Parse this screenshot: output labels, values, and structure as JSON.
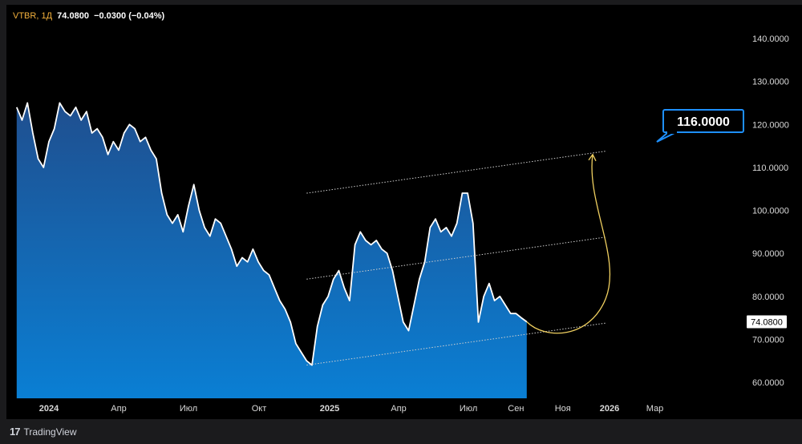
{
  "legend": {
    "symbol": "VTBR",
    "interval": "1Д",
    "last": "74.0800",
    "change": "−0.0300",
    "change_pct": "(−0.04%)"
  },
  "brand": {
    "logo": "17",
    "name": "TradingView"
  },
  "colors": {
    "area_top": "#1f4f8f",
    "area_bottom": "#0a7fd4",
    "line": "#ffffff",
    "forecast": "#f0d060",
    "callout": "#1e90ff",
    "guide": "#cfcfcf"
  },
  "chart_data": {
    "type": "area",
    "title": "",
    "xlabel": "",
    "ylabel": "",
    "ylim": [
      56,
      145
    ],
    "y_ticks": [
      "140.0000",
      "130.0000",
      "120.0000",
      "110.0000",
      "100.0000",
      "90.0000",
      "80.0000",
      "70.0000",
      "60.0000"
    ],
    "y_tick_values": [
      140,
      130,
      120,
      110,
      100,
      90,
      80,
      70,
      60
    ],
    "x_ticks": [
      {
        "label": "2024",
        "date": "2024-01-01",
        "bold": true
      },
      {
        "label": "Апр",
        "date": "2024-04-01",
        "bold": false
      },
      {
        "label": "Июл",
        "date": "2024-07-01",
        "bold": false
      },
      {
        "label": "Окт",
        "date": "2024-10-01",
        "bold": false
      },
      {
        "label": "2025",
        "date": "2025-01-01",
        "bold": true
      },
      {
        "label": "Апр",
        "date": "2025-04-01",
        "bold": false
      },
      {
        "label": "Июл",
        "date": "2025-07-01",
        "bold": false
      },
      {
        "label": "Сен",
        "date": "2025-09-01",
        "bold": false
      },
      {
        "label": "Ноя",
        "date": "2025-11-01",
        "bold": false
      },
      {
        "label": "2026",
        "date": "2026-01-01",
        "bold": true
      },
      {
        "label": "Мар",
        "date": "2026-03-01",
        "bold": false
      }
    ],
    "series": [
      {
        "points": [
          [
            "2023-11-20",
            124
          ],
          [
            "2023-11-27",
            121
          ],
          [
            "2023-12-04",
            125
          ],
          [
            "2023-12-11",
            118
          ],
          [
            "2023-12-18",
            112
          ],
          [
            "2023-12-25",
            110
          ],
          [
            "2024-01-01",
            116
          ],
          [
            "2024-01-08",
            119
          ],
          [
            "2024-01-15",
            125
          ],
          [
            "2024-01-22",
            123
          ],
          [
            "2024-01-29",
            122
          ],
          [
            "2024-02-05",
            124
          ],
          [
            "2024-02-12",
            121
          ],
          [
            "2024-02-19",
            123
          ],
          [
            "2024-02-26",
            118
          ],
          [
            "2024-03-04",
            119
          ],
          [
            "2024-03-11",
            117
          ],
          [
            "2024-03-18",
            113
          ],
          [
            "2024-03-25",
            116
          ],
          [
            "2024-04-01",
            114
          ],
          [
            "2024-04-08",
            118
          ],
          [
            "2024-04-15",
            120
          ],
          [
            "2024-04-22",
            119
          ],
          [
            "2024-04-29",
            116
          ],
          [
            "2024-05-06",
            117
          ],
          [
            "2024-05-13",
            114
          ],
          [
            "2024-05-20",
            112
          ],
          [
            "2024-05-27",
            104
          ],
          [
            "2024-06-03",
            99
          ],
          [
            "2024-06-10",
            97
          ],
          [
            "2024-06-17",
            99
          ],
          [
            "2024-06-24",
            95
          ],
          [
            "2024-07-01",
            101
          ],
          [
            "2024-07-08",
            106
          ],
          [
            "2024-07-15",
            100
          ],
          [
            "2024-07-22",
            96
          ],
          [
            "2024-07-29",
            94
          ],
          [
            "2024-08-05",
            98
          ],
          [
            "2024-08-12",
            97
          ],
          [
            "2024-08-19",
            94
          ],
          [
            "2024-08-26",
            91
          ],
          [
            "2024-09-02",
            87
          ],
          [
            "2024-09-09",
            89
          ],
          [
            "2024-09-16",
            88
          ],
          [
            "2024-09-23",
            91
          ],
          [
            "2024-09-30",
            88
          ],
          [
            "2024-10-07",
            86
          ],
          [
            "2024-10-14",
            85
          ],
          [
            "2024-10-21",
            82
          ],
          [
            "2024-10-28",
            79
          ],
          [
            "2024-11-04",
            77
          ],
          [
            "2024-11-11",
            74
          ],
          [
            "2024-11-18",
            69
          ],
          [
            "2024-11-25",
            67
          ],
          [
            "2024-12-02",
            65
          ],
          [
            "2024-12-09",
            64
          ],
          [
            "2024-12-16",
            73
          ],
          [
            "2024-12-23",
            78
          ],
          [
            "2024-12-30",
            80
          ],
          [
            "2025-01-06",
            84
          ],
          [
            "2025-01-13",
            86
          ],
          [
            "2025-01-20",
            82
          ],
          [
            "2025-01-27",
            79
          ],
          [
            "2025-02-03",
            92
          ],
          [
            "2025-02-10",
            95
          ],
          [
            "2025-02-17",
            93
          ],
          [
            "2025-02-24",
            92
          ],
          [
            "2025-03-03",
            93
          ],
          [
            "2025-03-10",
            91
          ],
          [
            "2025-03-17",
            90
          ],
          [
            "2025-03-24",
            86
          ],
          [
            "2025-03-31",
            80
          ],
          [
            "2025-04-07",
            74
          ],
          [
            "2025-04-14",
            72
          ],
          [
            "2025-04-21",
            78
          ],
          [
            "2025-04-28",
            84
          ],
          [
            "2025-05-05",
            88
          ],
          [
            "2025-05-12",
            96
          ],
          [
            "2025-05-19",
            98
          ],
          [
            "2025-05-26",
            95
          ],
          [
            "2025-06-02",
            96
          ],
          [
            "2025-06-09",
            94
          ],
          [
            "2025-06-16",
            97
          ],
          [
            "2025-06-23",
            104
          ],
          [
            "2025-06-30",
            104
          ],
          [
            "2025-07-07",
            97
          ],
          [
            "2025-07-14",
            74
          ],
          [
            "2025-07-21",
            80
          ],
          [
            "2025-07-28",
            83
          ],
          [
            "2025-08-04",
            79
          ],
          [
            "2025-08-11",
            80
          ],
          [
            "2025-08-18",
            78
          ],
          [
            "2025-08-25",
            76
          ],
          [
            "2025-09-01",
            76
          ],
          [
            "2025-09-08",
            75
          ],
          [
            "2025-09-15",
            74.08
          ]
        ]
      }
    ],
    "channel_lines": [
      {
        "from": [
          "2024-12-02",
          104
        ],
        "to": [
          "2025-12-28",
          113.8
        ]
      },
      {
        "from": [
          "2024-12-02",
          84
        ],
        "to": [
          "2025-12-28",
          93.8
        ]
      },
      {
        "from": [
          "2024-12-02",
          64
        ],
        "to": [
          "2025-12-28",
          73.8
        ]
      }
    ],
    "forecast": {
      "from": [
        "2025-09-15",
        74.08
      ],
      "mid": [
        "2025-10-20",
        72
      ],
      "to": [
        "2025-12-10",
        113
      ]
    },
    "target_label": "116.0000",
    "last_price_label": "74.0800",
    "last_price": 74.08
  }
}
